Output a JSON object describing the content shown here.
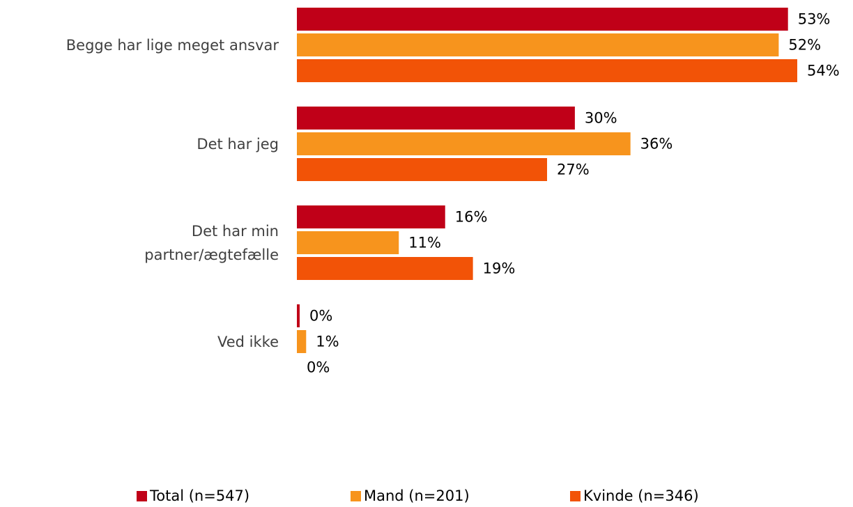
{
  "chart_data": {
    "type": "bar",
    "orientation": "horizontal",
    "categories": [
      "Begge har lige meget ansvar",
      "Det har jeg",
      "Det har min\npartner/ægtefælle",
      "Ved ikke"
    ],
    "series": [
      {
        "name": "Total (n=547)",
        "color": "#c00018",
        "values": [
          53,
          30,
          16,
          0.3
        ],
        "value_labels": [
          "53%",
          "30%",
          "16%",
          "0%"
        ]
      },
      {
        "name": "Mand (n=201)",
        "color": "#f7941d",
        "values": [
          52,
          36,
          11,
          1
        ],
        "value_labels": [
          "52%",
          "36%",
          "11%",
          "1%"
        ]
      },
      {
        "name": "Kvinde (n=346)",
        "color": "#f25307",
        "values": [
          54,
          27,
          19,
          0
        ],
        "value_labels": [
          "54%",
          "27%",
          "19%",
          "0%"
        ]
      }
    ],
    "legend": "bottom"
  }
}
